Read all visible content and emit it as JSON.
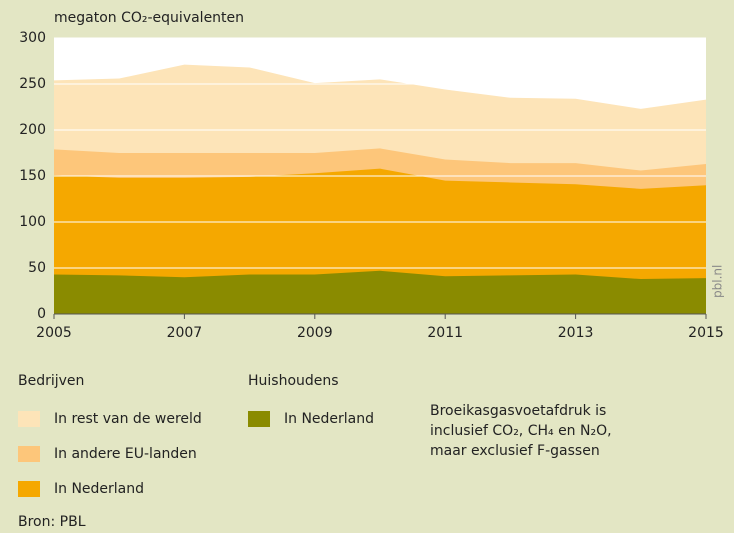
{
  "chart_data": {
    "type": "stacked_area",
    "title": "megaton CO₂-equivalenten",
    "x": [
      2005,
      2006,
      2007,
      2008,
      2009,
      2010,
      2011,
      2012,
      2013,
      2014,
      2015
    ],
    "xlim": [
      2005,
      2015
    ],
    "xticks": [
      2005,
      2007,
      2009,
      2011,
      2013,
      2015
    ],
    "ylim": [
      0,
      300
    ],
    "yticks": [
      0,
      50,
      100,
      150,
      200,
      250,
      300
    ],
    "grid": true,
    "series": [
      {
        "name": "In Nederland",
        "color": "#8a8b00",
        "values": [
          43,
          42,
          40,
          43,
          43,
          47,
          41,
          42,
          43,
          38,
          39
        ]
      },
      {
        "name": "In Nederland",
        "color": "#f5a800",
        "values": [
          108,
          106,
          108,
          106,
          110,
          111,
          104,
          101,
          98,
          98,
          101
        ]
      },
      {
        "name": "In andere EU-landen",
        "color": "#fdc67a",
        "values": [
          28,
          27,
          27,
          26,
          22,
          22,
          23,
          21,
          23,
          20,
          23
        ]
      },
      {
        "name": "In rest van de wereld",
        "color": "#fde4b8",
        "values": [
          75,
          81,
          96,
          93,
          76,
          75,
          76,
          71,
          70,
          67,
          70
        ]
      }
    ],
    "legend_groups": [
      "Huishoudens",
      "Bedrijven"
    ],
    "note": [
      "Broeikasgasvoetafdruk is",
      "inclusief CO₂, CH₄ en N₂O,",
      "maar exclusief F-gassen"
    ],
    "watermark": "pbl.nl",
    "source": "Bron: PBL"
  }
}
